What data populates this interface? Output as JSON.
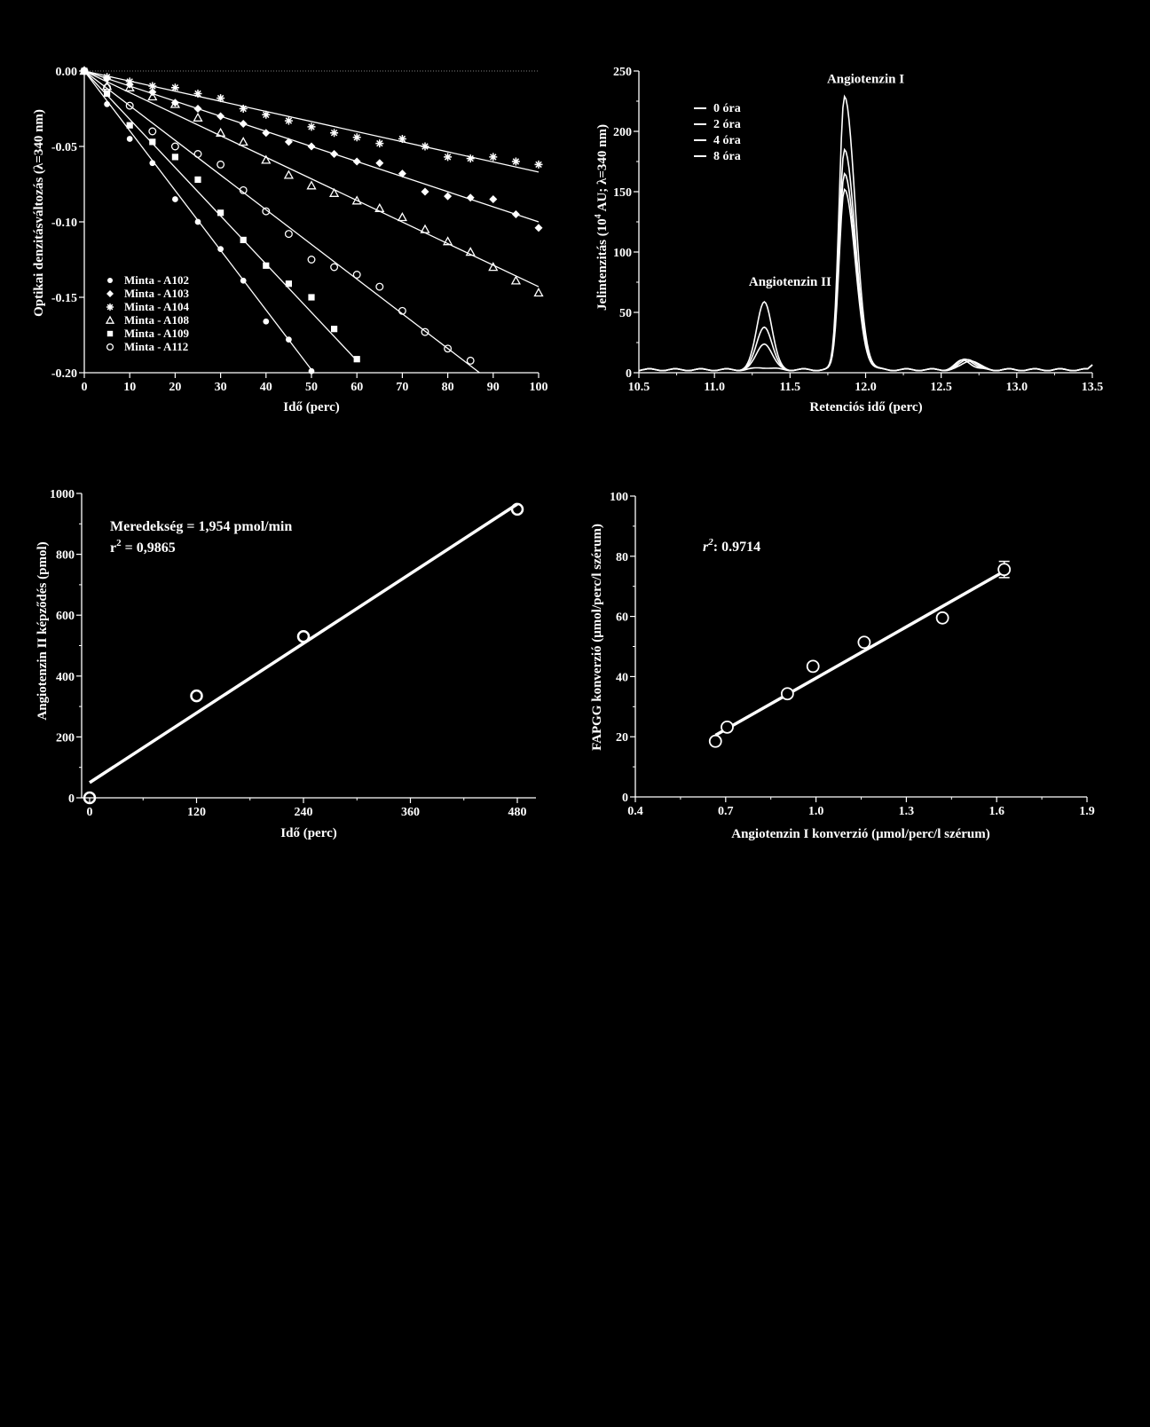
{
  "chart_data": [
    {
      "type": "scatter",
      "xlabel": "Idő (perc)",
      "ylabel": "Optikai denzitásváltozás (λ=340 nm)",
      "xlim": [
        0,
        100
      ],
      "ylim": [
        -0.2,
        0.0
      ],
      "xticks": [
        "0",
        "10",
        "20",
        "30",
        "40",
        "50",
        "60",
        "70",
        "80",
        "90",
        "100"
      ],
      "yticks": [
        "0.00",
        "-0.05",
        "-0.10",
        "-0.15",
        "-0.20"
      ],
      "legend_position": "bottom-left",
      "series": [
        {
          "name": "Minta - A102",
          "marker": "filled-circle",
          "x": [
            0,
            5,
            10,
            15,
            20,
            25,
            30,
            35,
            40,
            45,
            50
          ],
          "y": [
            0,
            -0.022,
            -0.045,
            -0.061,
            -0.085,
            -0.1,
            -0.118,
            -0.139,
            -0.166,
            -0.178,
            -0.199
          ],
          "fit_end": [
            50.5,
            -0.2
          ]
        },
        {
          "name": "Minta - A103",
          "marker": "filled-diamond",
          "x": [
            0,
            5,
            10,
            15,
            20,
            25,
            30,
            35,
            40,
            45,
            50,
            55,
            60,
            65,
            70,
            75,
            80,
            85,
            90,
            95,
            100
          ],
          "y": [
            0,
            -0.005,
            -0.009,
            -0.014,
            -0.021,
            -0.025,
            -0.03,
            -0.035,
            -0.041,
            -0.047,
            -0.05,
            -0.055,
            -0.06,
            -0.061,
            -0.068,
            -0.08,
            -0.083,
            -0.084,
            -0.085,
            -0.095,
            -0.104
          ],
          "fit_end": [
            100,
            -0.1
          ]
        },
        {
          "name": "Minta - A104",
          "marker": "asterisk",
          "x": [
            0,
            5,
            10,
            15,
            20,
            25,
            30,
            35,
            40,
            45,
            50,
            55,
            60,
            65,
            70,
            75,
            80,
            85,
            90,
            95,
            100
          ],
          "y": [
            0,
            -0.004,
            -0.007,
            -0.01,
            -0.011,
            -0.015,
            -0.018,
            -0.025,
            -0.029,
            -0.033,
            -0.037,
            -0.041,
            -0.044,
            -0.048,
            -0.045,
            -0.05,
            -0.057,
            -0.058,
            -0.057,
            -0.06,
            -0.062
          ],
          "fit_end": [
            100,
            -0.067
          ]
        },
        {
          "name": "Minta - A108",
          "marker": "open-triangle",
          "x": [
            0,
            5,
            10,
            15,
            20,
            25,
            30,
            35,
            40,
            45,
            50,
            55,
            60,
            65,
            70,
            75,
            80,
            85,
            90,
            95,
            100
          ],
          "y": [
            0,
            -0.01,
            -0.011,
            -0.017,
            -0.022,
            -0.031,
            -0.041,
            -0.047,
            -0.059,
            -0.069,
            -0.076,
            -0.081,
            -0.086,
            -0.091,
            -0.097,
            -0.105,
            -0.113,
            -0.12,
            -0.13,
            -0.139,
            -0.147
          ],
          "fit_end": [
            100,
            -0.143
          ]
        },
        {
          "name": "Minta - A109",
          "marker": "filled-square",
          "x": [
            0,
            5,
            10,
            15,
            20,
            25,
            30,
            35,
            40,
            45,
            50,
            55,
            60
          ],
          "y": [
            0,
            -0.015,
            -0.036,
            -0.047,
            -0.057,
            -0.072,
            -0.094,
            -0.112,
            -0.129,
            -0.141,
            -0.15,
            -0.171,
            -0.191
          ],
          "fit_end": [
            60,
            -0.192
          ]
        },
        {
          "name": "Minta - A112",
          "marker": "open-circle",
          "x": [
            0,
            5,
            10,
            15,
            20,
            25,
            30,
            35,
            40,
            45,
            50,
            55,
            60,
            65,
            70,
            75,
            80,
            85
          ],
          "y": [
            0,
            -0.011,
            -0.023,
            -0.04,
            -0.05,
            -0.055,
            -0.062,
            -0.079,
            -0.093,
            -0.108,
            -0.125,
            -0.13,
            -0.135,
            -0.143,
            -0.159,
            -0.173,
            -0.184,
            -0.192
          ],
          "fit_end": [
            87,
            -0.2
          ]
        }
      ]
    },
    {
      "type": "line",
      "xlabel": "Retenciós idő (perc)",
      "ylabel": "Jelintenzitás (10⁴ AU; λ=340 nm)",
      "xlim": [
        10.5,
        13.5
      ],
      "ylim": [
        0,
        250
      ],
      "xticks": [
        "10.5",
        "11.0",
        "11.5",
        "12.0",
        "12.5",
        "13.0",
        "13.5"
      ],
      "yticks": [
        "0",
        "50",
        "100",
        "150",
        "200",
        "250"
      ],
      "legend_position": "top-left",
      "annotations": [
        {
          "text": "Angiotenzin I",
          "x": 12.0,
          "y": 240
        },
        {
          "text": "Angiotenzin II",
          "x": 11.5,
          "y": 72
        }
      ],
      "series": [
        {
          "name": "0 óra",
          "peak1": 2,
          "peak2": 227,
          "minor": 8
        },
        {
          "name": "2 óra",
          "peak1": 22,
          "peak2": 183,
          "minor": 9
        },
        {
          "name": "4 óra",
          "peak1": 36,
          "peak2": 163,
          "minor": 9
        },
        {
          "name": "8 óra",
          "peak1": 57,
          "peak2": 150,
          "minor": 8
        }
      ]
    },
    {
      "type": "scatter",
      "xlabel": "Idő (perc)",
      "ylabel": "Angiotenzin II képződés (pmol)",
      "xlim": [
        0,
        480
      ],
      "ylim": [
        0,
        1000
      ],
      "xticks": [
        "0",
        "120",
        "240",
        "360",
        "480"
      ],
      "yticks": [
        "0",
        "200",
        "400",
        "600",
        "800",
        "1000"
      ],
      "annotations": [
        "Meredekség = 1,954 pmol/min",
        "r",
        "2",
        " = 0,9865"
      ],
      "x": [
        0,
        120,
        240,
        480
      ],
      "y": [
        0,
        335,
        530,
        948
      ],
      "fit": {
        "x": [
          0,
          480
        ],
        "y": [
          50,
          965
        ]
      }
    },
    {
      "type": "scatter",
      "xlabel": "Angiotenzin I konverzió (μmol/perc/l szérum)",
      "ylabel": "FAPGG konverzió (μmol/perc/l szérum)",
      "xlim": [
        0.4,
        1.9
      ],
      "ylim": [
        0,
        100
      ],
      "xticks": [
        "0.4",
        "0.7",
        "1.0",
        "1.3",
        "1.6",
        "1.9"
      ],
      "yticks": [
        "0",
        "20",
        "40",
        "60",
        "80",
        "100"
      ],
      "annotations": [
        "r",
        "2",
        ": 0.9714"
      ],
      "x": [
        0.666,
        0.705,
        0.905,
        0.99,
        1.16,
        1.42,
        1.625
      ],
      "y": [
        18.5,
        23.2,
        34.3,
        43.4,
        51.4,
        59.5,
        75.6
      ],
      "error": [
        0,
        0,
        0,
        0,
        0,
        0,
        2.7
      ],
      "fit": {
        "x": [
          0.666,
          1.625
        ],
        "y": [
          20.5,
          75
        ]
      }
    }
  ]
}
